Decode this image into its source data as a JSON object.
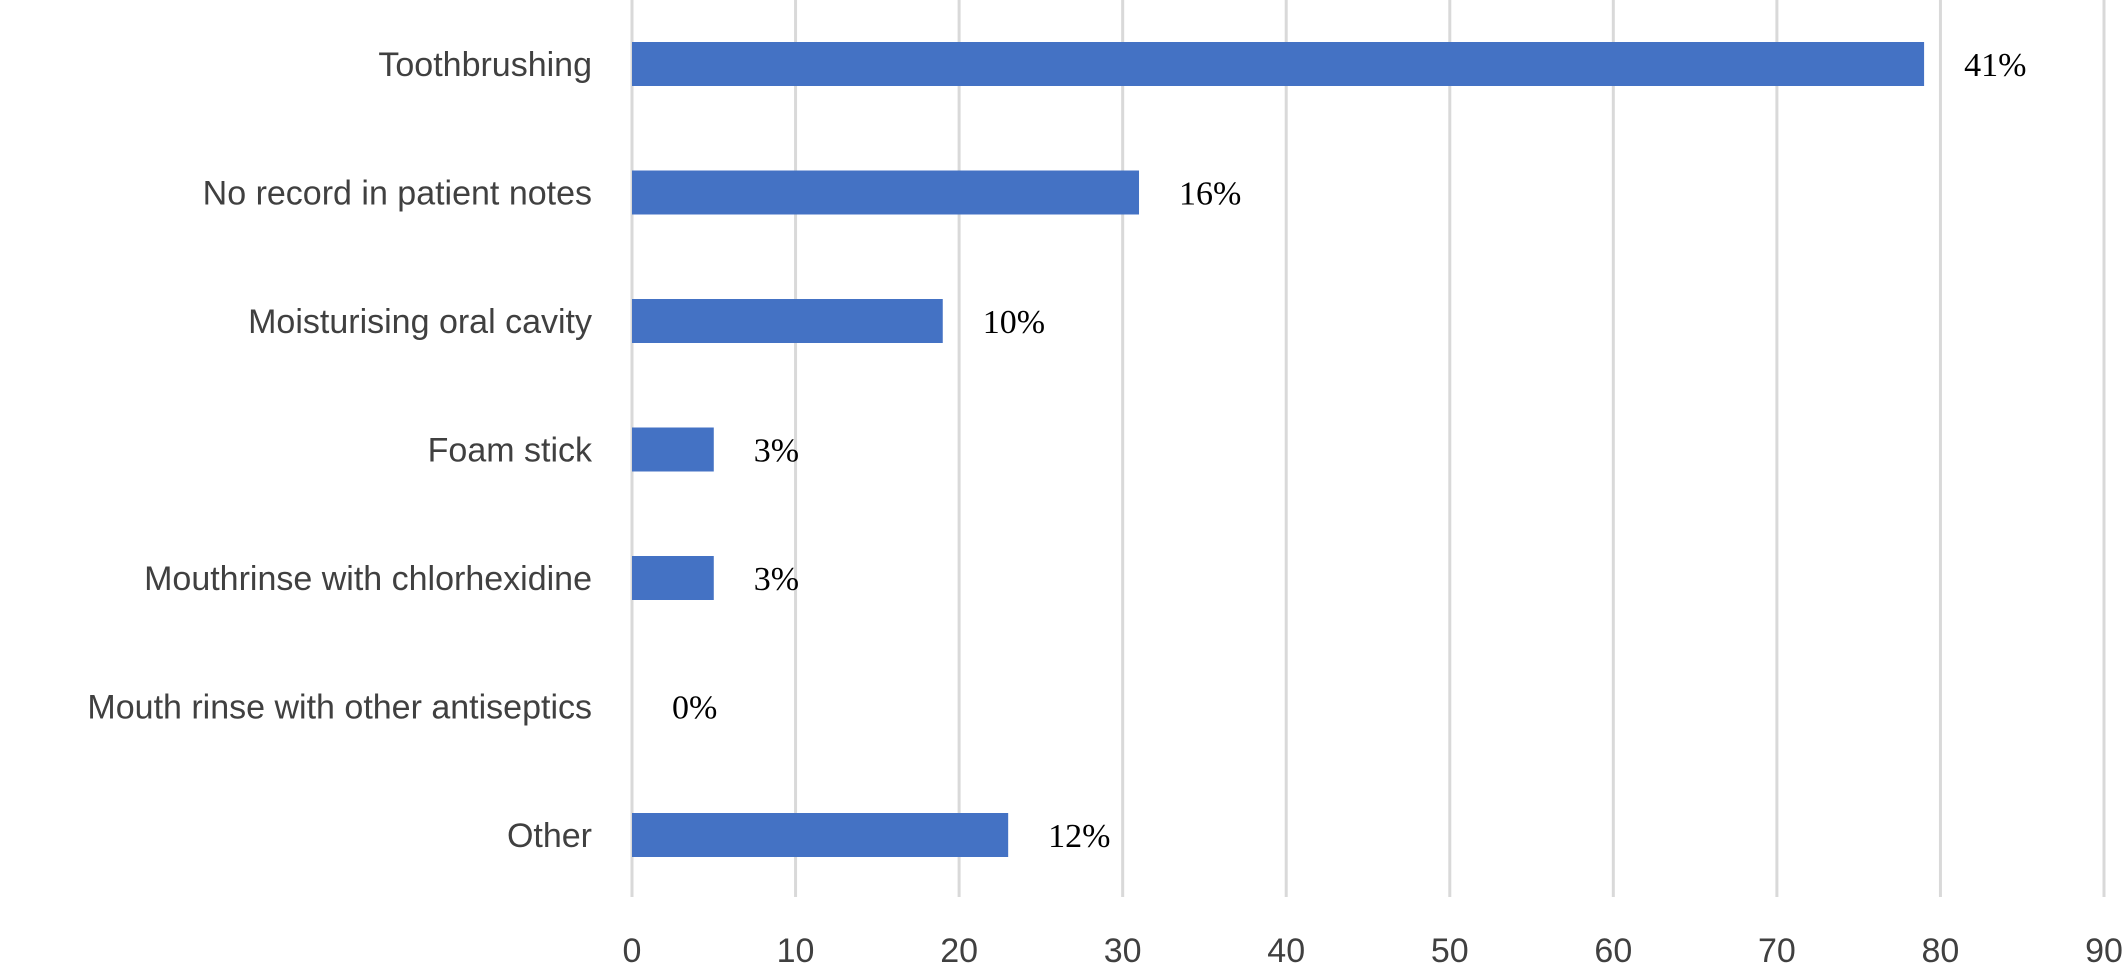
{
  "chart_data": {
    "type": "bar",
    "orientation": "horizontal",
    "categories": [
      "Toothbrushing",
      "No record in patient notes",
      "Moisturising oral cavity",
      "Foam stick",
      "Mouthrinse with chlorhexidine",
      "Mouth rinse with other antiseptics",
      "Other"
    ],
    "values": [
      79,
      31,
      19,
      5,
      5,
      0,
      23
    ],
    "data_labels": [
      "41%",
      "16%",
      "10%",
      "3%",
      "3%",
      "0%",
      "12%"
    ],
    "xlim": [
      0,
      90
    ],
    "xticks": [
      "0",
      "10",
      "20",
      "30",
      "40",
      "50",
      "60",
      "70",
      "80",
      "90"
    ],
    "grid": true,
    "legend": "none",
    "bar_color": "#4472c4",
    "grid_color": "#d9d9d9"
  }
}
